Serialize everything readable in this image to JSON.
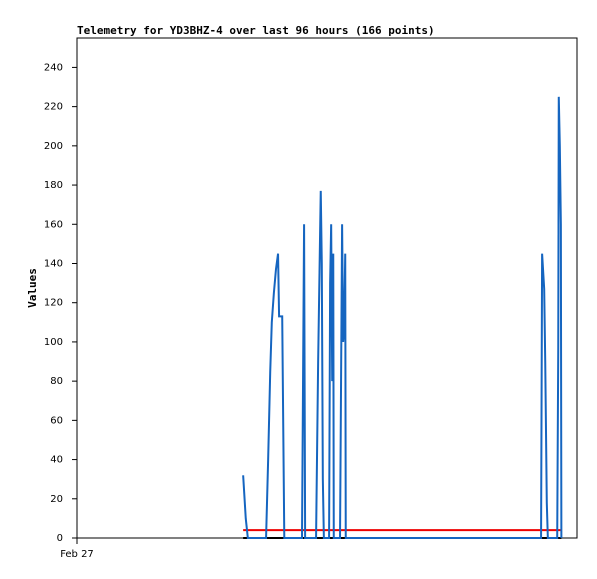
{
  "chart_data": {
    "type": "line",
    "title": "Telemetry for YD3BHZ-4 over last 96 hours (166 points)",
    "y_label": "Values",
    "x": [
      31.9,
      32.4,
      32.8,
      36.3,
      36.7,
      37.1,
      37.4,
      37.8,
      38.2,
      38.6,
      38.8,
      39.4,
      39.8,
      43.2,
      43.4,
      43.6,
      43.8,
      45.9,
      46.3,
      46.7,
      46.8,
      47.0,
      47.2,
      47.4,
      48.4,
      48.6,
      48.8,
      49.0,
      49.2,
      49.3,
      50.5,
      50.7,
      50.9,
      51.1,
      51.3,
      51.5,
      51.6,
      89.1,
      89.3,
      89.7,
      89.9,
      90.2,
      90.4,
      92.2,
      92.4,
      92.5,
      92.7,
      92.9,
      93.0
    ],
    "series": [
      {
        "color": "#000000",
        "values": [
          0,
          0,
          0,
          0,
          0,
          0,
          0,
          0,
          0,
          0,
          0,
          0,
          0,
          0,
          0,
          0,
          0,
          0,
          0,
          0,
          0,
          0,
          0,
          0,
          0,
          0,
          0,
          0,
          0,
          0,
          0,
          0,
          0,
          0,
          0,
          0,
          0,
          0,
          0,
          0,
          0,
          0,
          0,
          0,
          0,
          0,
          0,
          0,
          0
        ]
      },
      {
        "color": "#ee0000",
        "values": [
          4,
          4,
          4,
          4,
          4,
          4,
          4,
          4,
          4,
          4,
          4,
          4,
          4,
          4,
          4,
          4,
          4,
          4,
          4,
          4,
          4,
          4,
          4,
          4,
          4,
          4,
          4,
          4,
          4,
          4,
          4,
          4,
          4,
          4,
          4,
          4,
          4,
          4,
          4,
          4,
          4,
          4,
          4,
          4,
          4,
          4,
          4,
          4,
          4
        ]
      },
      {
        "color": "#1565c0",
        "values": [
          32,
          10,
          0,
          0,
          40,
          85,
          110,
          125,
          137,
          145,
          113,
          113,
          0,
          0,
          80,
          160,
          0,
          0,
          90,
          160,
          177,
          140,
          30,
          0,
          0,
          130,
          160,
          80,
          145,
          0,
          0,
          80,
          160,
          100,
          107,
          145,
          0,
          0,
          145,
          127,
          90,
          18,
          0,
          0,
          97,
          225,
          200,
          160,
          0
        ]
      }
    ],
    "xlim": [
      0,
      96
    ],
    "xticks": [
      {
        "value": 0,
        "label": "Feb 27"
      }
    ],
    "ylim": [
      0,
      255
    ],
    "yticks": [
      0,
      20,
      40,
      60,
      80,
      100,
      120,
      140,
      160,
      180,
      200,
      220,
      240
    ]
  }
}
